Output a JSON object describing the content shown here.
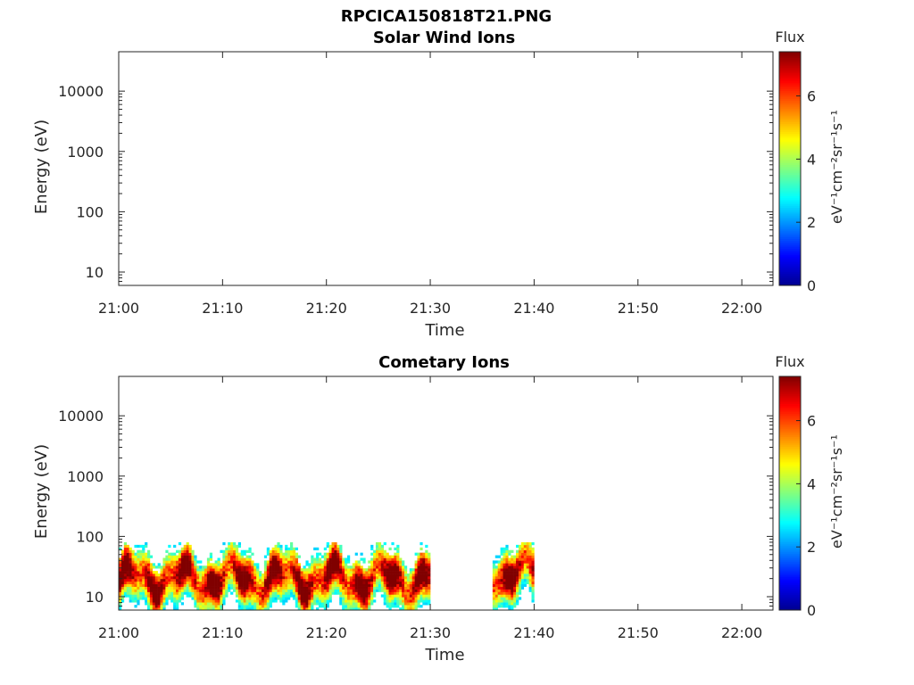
{
  "figure": {
    "title": "RPCICA150818T21.PNG"
  },
  "colormap": [
    "#00008f",
    "#0000ff",
    "#0080ff",
    "#00ffff",
    "#80ff80",
    "#ffff00",
    "#ff8000",
    "#ff0000",
    "#800000"
  ],
  "chart_data": [
    {
      "type": "heatmap",
      "title": "Solar Wind Ions",
      "xlabel": "Time",
      "ylabel": "Energy (eV)",
      "y_scale": "log",
      "ylim": [
        6,
        45000
      ],
      "x_ticks": [
        "21:00",
        "21:10",
        "21:20",
        "21:30",
        "21:40",
        "21:50",
        "22:00"
      ],
      "xlim_minutes_after_21_00": [
        0,
        63
      ],
      "y_ticks": [
        10,
        100,
        1000,
        10000
      ],
      "y_tick_labels": [
        "10",
        "100",
        "1000",
        "10000"
      ],
      "colorbar": {
        "title": "Flux",
        "label": "eV⁻¹cm⁻²sr⁻¹s⁻¹",
        "range": [
          0,
          7.4
        ],
        "ticks": [
          0,
          2,
          4,
          6
        ],
        "tick_labels": [
          "0",
          "2",
          "4",
          "6"
        ]
      },
      "segments": []
    },
    {
      "type": "heatmap",
      "title": "Cometary Ions",
      "xlabel": "Time",
      "ylabel": "Energy (eV)",
      "y_scale": "log",
      "ylim": [
        6,
        45000
      ],
      "x_ticks": [
        "21:00",
        "21:10",
        "21:20",
        "21:30",
        "21:40",
        "21:50",
        "22:00"
      ],
      "xlim_minutes_after_21_00": [
        0,
        63
      ],
      "y_ticks": [
        10,
        100,
        1000,
        10000
      ],
      "y_tick_labels": [
        "10",
        "100",
        "1000",
        "10000"
      ],
      "colorbar": {
        "title": "Flux",
        "label": "eV⁻¹cm⁻²sr⁻¹s⁻¹",
        "range": [
          0,
          7.4
        ],
        "ticks": [
          0,
          2,
          4,
          6
        ],
        "tick_labels": [
          "0",
          "2",
          "4",
          "6"
        ]
      },
      "segments": [
        {
          "start": "21:00",
          "end": "21:30",
          "energy_range_eV": [
            6,
            80
          ],
          "peak_energy_eV": 20,
          "peak_flux": 7
        },
        {
          "start": "21:36",
          "end": "21:40",
          "energy_range_eV": [
            6,
            80
          ],
          "peak_energy_eV": 25,
          "peak_flux": 7
        }
      ]
    }
  ]
}
